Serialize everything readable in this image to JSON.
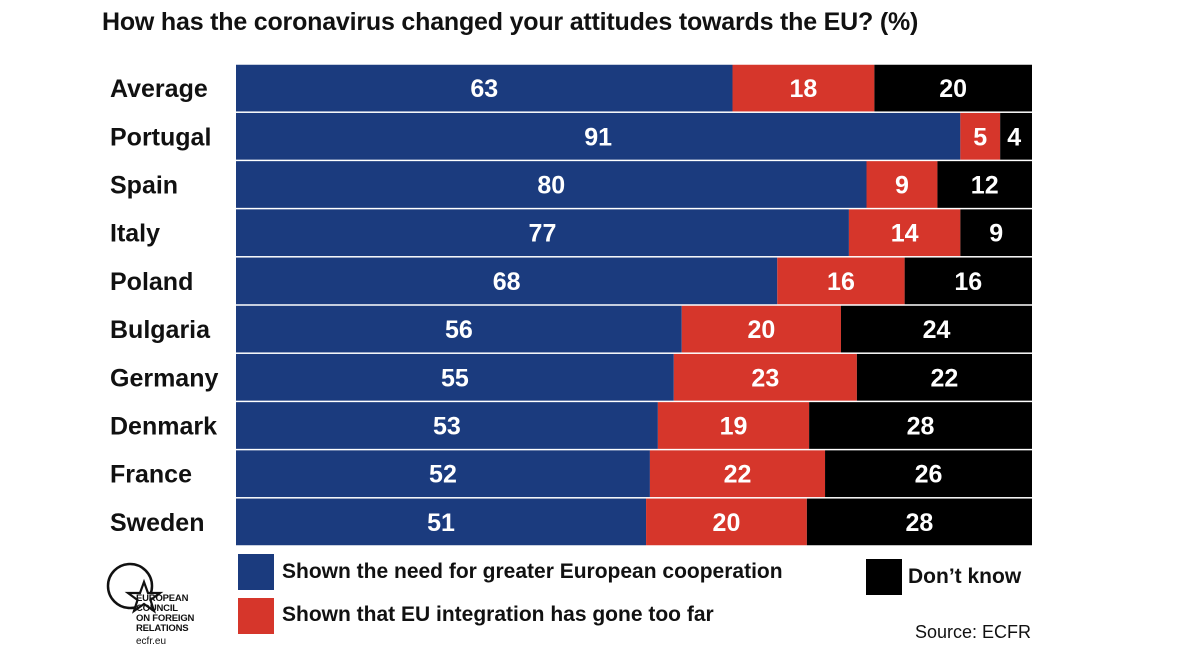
{
  "title": "How has the coronavirus changed your attitudes towards the EU?",
  "title_unit": "(%)",
  "colors": {
    "cooperation": "#1b3b7e",
    "too_far": "#d6362b",
    "dont_know": "#000000"
  },
  "chart_data": {
    "type": "bar",
    "orientation": "horizontal",
    "stacked": true,
    "normalized": true,
    "title": "How has the coronavirus changed your attitudes towards the EU? (%)",
    "categories": [
      "Average",
      "Portugal",
      "Spain",
      "Italy",
      "Poland",
      "Bulgaria",
      "Germany",
      "Denmark",
      "France",
      "Sweden"
    ],
    "series": [
      {
        "name": "Shown the need for greater European cooperation",
        "key": "cooperation",
        "values": [
          63,
          91,
          80,
          77,
          68,
          56,
          55,
          53,
          52,
          51
        ]
      },
      {
        "name": "Shown that EU integration has gone too far",
        "key": "too_far",
        "values": [
          18,
          5,
          9,
          14,
          16,
          20,
          23,
          19,
          22,
          20
        ]
      },
      {
        "name": "Don’t know",
        "key": "dont_know",
        "values": [
          20,
          4,
          12,
          9,
          16,
          24,
          22,
          28,
          26,
          28
        ]
      }
    ],
    "xlabel": "",
    "ylabel": "",
    "legend_position": "bottom"
  },
  "legend": {
    "cooperation": "Shown the need for greater European cooperation",
    "too_far": "Shown that EU integration has gone too far",
    "dont_know": "Don’t know"
  },
  "logo": {
    "lines": [
      "EUROPEAN",
      "COUNCIL",
      "ON FOREIGN",
      "RELATIONS"
    ],
    "url": "ecfr.eu"
  },
  "source": "Source: ECFR"
}
